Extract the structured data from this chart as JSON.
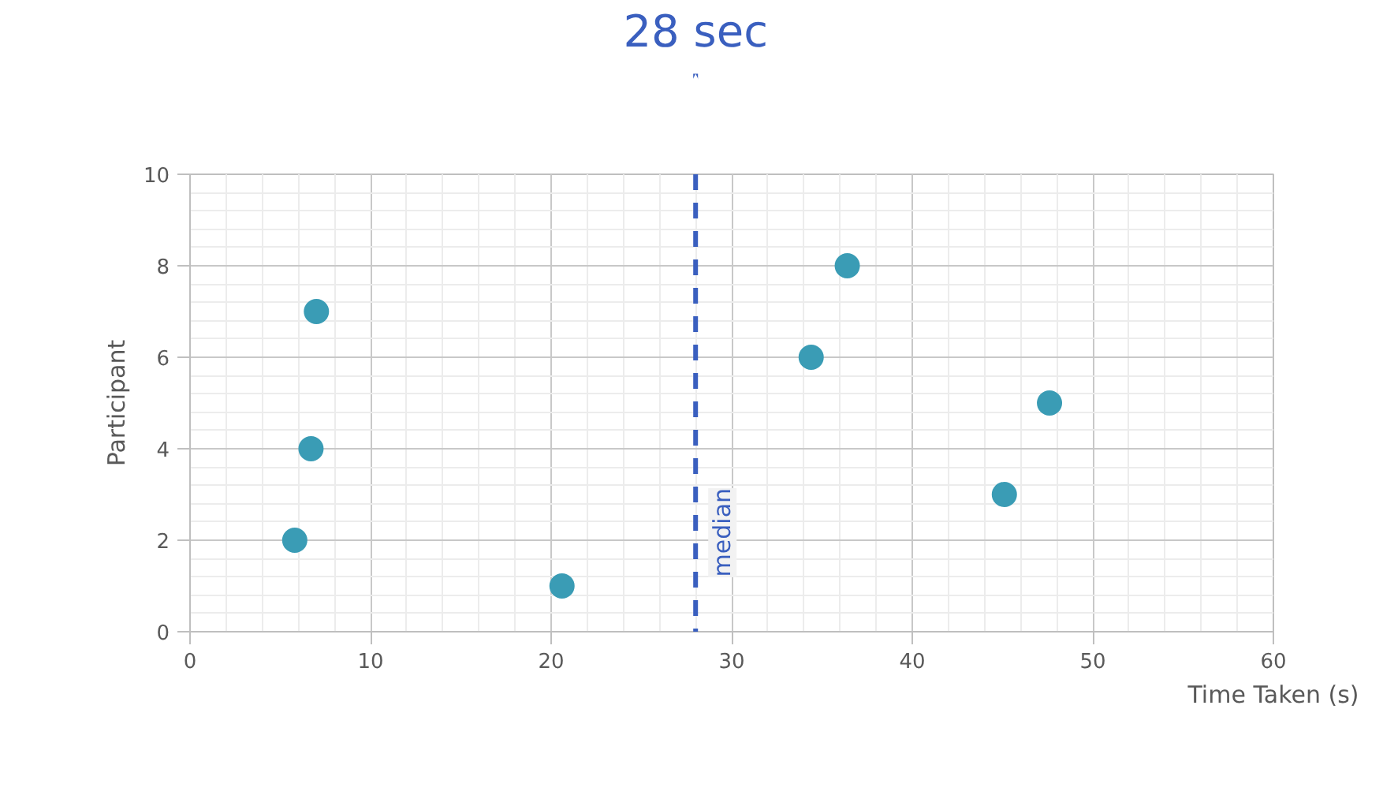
{
  "chart_data": {
    "type": "scatter",
    "xlabel": "Time Taken (s)",
    "ylabel": "Participant",
    "x": [
      5.8,
      6.7,
      7.0,
      20.6,
      34.4,
      36.4,
      45.1,
      47.6
    ],
    "series": [
      {
        "color": "#3a9cb5",
        "values": [
          2,
          4,
          7,
          1,
          6,
          8,
          3,
          5
        ]
      }
    ],
    "marker": "circle",
    "xlim": [
      0,
      60
    ],
    "xticks": [
      0,
      10,
      20,
      30,
      40,
      50,
      60
    ],
    "ylim": [
      0,
      10
    ],
    "yticks": [
      0,
      2,
      4,
      6,
      8,
      10
    ],
    "grid": true,
    "ref_lines": [
      {
        "axis": "x",
        "value": 28,
        "label": "median",
        "color": "#3a5fbf",
        "line_style": "dashed"
      }
    ],
    "annotations": [
      {
        "text": "28 sec",
        "x": 28,
        "y": 10
      }
    ]
  }
}
